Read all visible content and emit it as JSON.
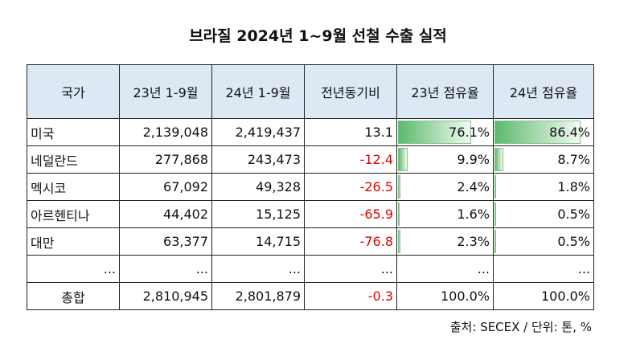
{
  "title": "브라질 2024년 1~9월 선철 수출 실적",
  "headers": [
    "국가",
    "23년 1-9월",
    "24년 1-9월",
    "전년동기비",
    "23년 점유율",
    "24년 점유율"
  ],
  "rows": [
    {
      "country": "미국",
      "y23": "2,139,048",
      "y24": "2,419,437",
      "yoy": "13.1",
      "s23": "76.1%",
      "s24": "86.4%",
      "s23v": 76.1,
      "s24v": 86.4,
      "neg": false
    },
    {
      "country": "네덜란드",
      "y23": "277,868",
      "y24": "243,473",
      "yoy": "-12.4",
      "s23": "9.9%",
      "s24": "8.7%",
      "s23v": 9.9,
      "s24v": 8.7,
      "neg": true
    },
    {
      "country": "멕시코",
      "y23": "67,092",
      "y24": "49,328",
      "yoy": "-26.5",
      "s23": "2.4%",
      "s24": "1.8%",
      "s23v": 2.4,
      "s24v": 1.8,
      "neg": true
    },
    {
      "country": "아르헨티나",
      "y23": "44,402",
      "y24": "15,125",
      "yoy": "-65.9",
      "s23": "1.6%",
      "s24": "0.5%",
      "s23v": 1.6,
      "s24v": 0.5,
      "neg": true
    },
    {
      "country": "대만",
      "y23": "63,377",
      "y24": "14,715",
      "yoy": "-76.8",
      "s23": "2.3%",
      "s24": "0.5%",
      "s23v": 2.3,
      "s24v": 0.5,
      "neg": true
    },
    {
      "country": "...",
      "y23": "...",
      "y24": "...",
      "yoy": "...",
      "s23": "...",
      "s24": "...",
      "neg": false
    }
  ],
  "total": {
    "label": "총합",
    "y23": "2,810,945",
    "y24": "2,801,879",
    "yoy": "-0.3",
    "s23": "100.0%",
    "s24": "100.0%"
  },
  "source": "출처: SECEX / 단위: 톤, %"
}
